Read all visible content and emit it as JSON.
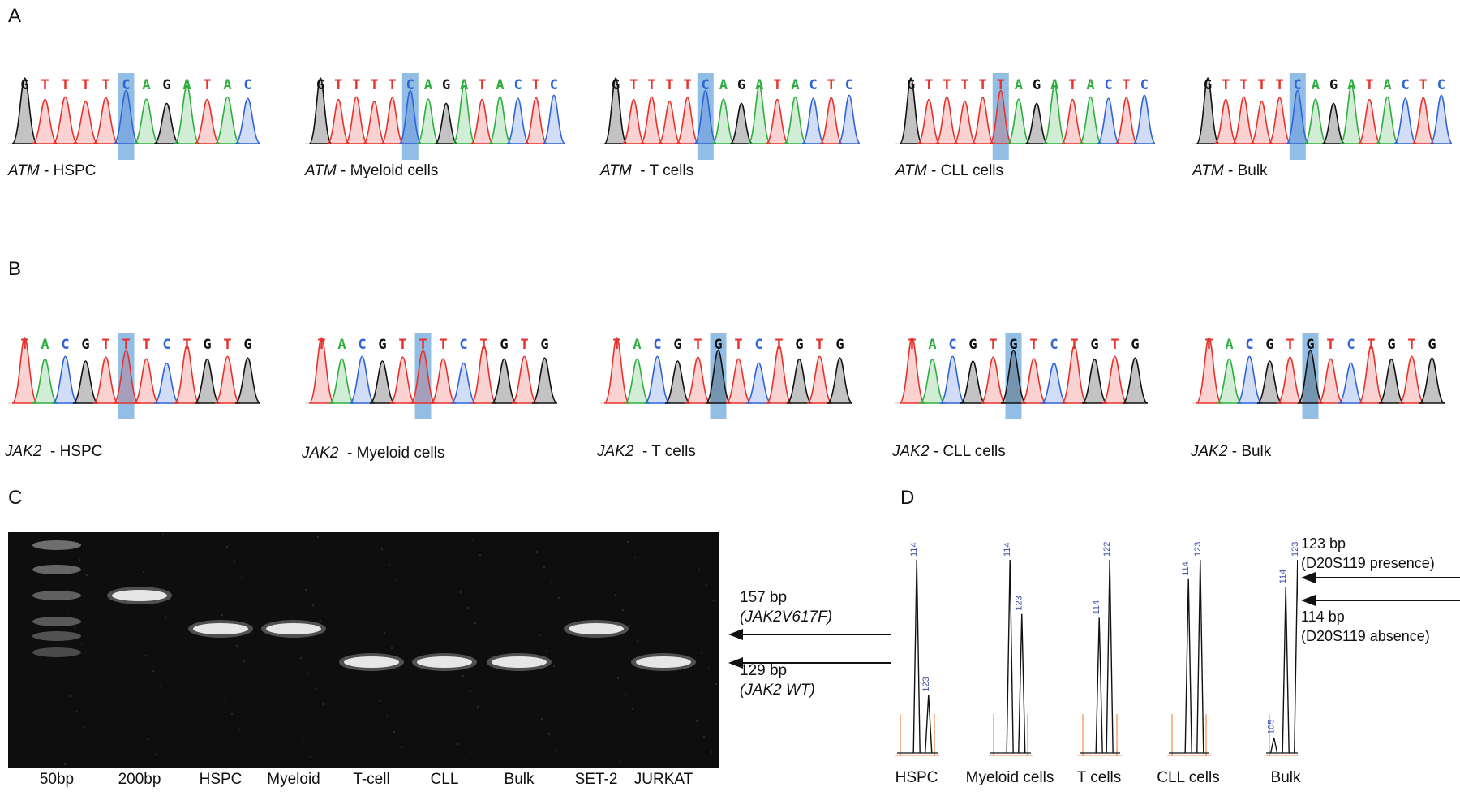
{
  "panels": {
    "a": "A",
    "b": "B",
    "c": "C",
    "d": "D"
  },
  "atm": [
    {
      "gene": "ATM",
      "sep": " - ",
      "cell": "HSPC",
      "seq": [
        "G",
        "T",
        "T",
        "T",
        "T",
        "C",
        "A",
        "G",
        "A",
        "T",
        "A",
        "C"
      ]
    },
    {
      "gene": "ATM",
      "sep": " - ",
      "cell": "Myeloid cells",
      "seq": [
        "G",
        "T",
        "T",
        "T",
        "T",
        "C",
        "A",
        "G",
        "A",
        "T",
        "A",
        "C",
        "T",
        "C"
      ]
    },
    {
      "gene": "ATM",
      "sep": "  - ",
      "cell": "T cells",
      "seq": [
        "G",
        "T",
        "T",
        "T",
        "T",
        "C",
        "A",
        "G",
        "A",
        "T",
        "A",
        "C",
        "T",
        "C"
      ]
    },
    {
      "gene": "ATM",
      "sep": " - ",
      "cell": "CLL cells",
      "seq": [
        "G",
        "T",
        "T",
        "T",
        "T",
        "T",
        "A",
        "G",
        "A",
        "T",
        "A",
        "C",
        "T",
        "C"
      ]
    },
    {
      "gene": "ATM",
      "sep": " - ",
      "cell": "Bulk",
      "seq": [
        "G",
        "T",
        "T",
        "T",
        "T",
        "C",
        "A",
        "G",
        "A",
        "T",
        "A",
        "C",
        "T",
        "C"
      ]
    }
  ],
  "jak2": [
    {
      "gene": "JAK2",
      "sep": "  - ",
      "cell": "HSPC",
      "seq": [
        "T",
        "A",
        "C",
        "G",
        "T",
        "T",
        "T",
        "C",
        "T",
        "G",
        "T",
        "G"
      ]
    },
    {
      "gene": "JAK2",
      "sep": "  - ",
      "cell": "Myeloid cells",
      "seq": [
        "T",
        "A",
        "C",
        "G",
        "T",
        "T",
        "T",
        "C",
        "T",
        "G",
        "T",
        "G"
      ]
    },
    {
      "gene": "JAK2",
      "sep": "  - ",
      "cell": "T cells",
      "seq": [
        "T",
        "A",
        "C",
        "G",
        "T",
        "G",
        "T",
        "C",
        "T",
        "G",
        "T",
        "G"
      ]
    },
    {
      "gene": "JAK2",
      "sep": " - ",
      "cell": "CLL cells",
      "seq": [
        "T",
        "A",
        "C",
        "G",
        "T",
        "G",
        "T",
        "C",
        "T",
        "G",
        "T",
        "G"
      ]
    },
    {
      "gene": "JAK2",
      "sep": " - ",
      "cell": "Bulk",
      "seq": [
        "T",
        "A",
        "C",
        "G",
        "T",
        "G",
        "T",
        "C",
        "T",
        "G",
        "T",
        "G"
      ]
    }
  ],
  "base_colors": {
    "A": "#2fae3f",
    "C": "#2f64d6",
    "G": "#111111",
    "T": "#e6322c"
  },
  "highlight_color": "#7fb3e0",
  "gel": {
    "lanes": [
      "50bp",
      "200bp",
      "HSPC",
      "Myeloid",
      "T-cell",
      "CLL",
      "Bulk",
      "SET-2",
      "JURKAT"
    ],
    "bands": {
      "50bp": [
        "ladder"
      ],
      "200bp": [
        "200bp"
      ],
      "HSPC": [
        "157"
      ],
      "Myeloid": [
        "157"
      ],
      "T-cell": [
        "129"
      ],
      "CLL": [
        "129"
      ],
      "Bulk": [
        "129"
      ],
      "SET-2": [
        "157"
      ],
      "JURKAT": [
        "129"
      ]
    },
    "upper_label": "157 bp",
    "upper_sub": "(JAK2V617F)",
    "lower_label": "129 bp",
    "lower_sub": "(JAK2 WT)"
  },
  "fragments": {
    "samples": [
      {
        "name": "HSPC",
        "peaks": [
          {
            "size": 114,
            "height": 1.0
          },
          {
            "size": 123,
            "height": 0.3
          }
        ]
      },
      {
        "name": "Myeloid cells",
        "peaks": [
          {
            "size": 114,
            "height": 1.0
          },
          {
            "size": 123,
            "height": 0.72
          }
        ]
      },
      {
        "name": "T cells",
        "peaks": [
          {
            "size": 114,
            "height": 0.7
          },
          {
            "size": 122,
            "height": 1.0
          }
        ]
      },
      {
        "name": "CLL cells",
        "peaks": [
          {
            "size": 114,
            "height": 0.9
          },
          {
            "size": 123,
            "height": 1.0
          }
        ]
      },
      {
        "name": "Bulk",
        "peaks": [
          {
            "size": 105,
            "height": 0.08
          },
          {
            "size": 114,
            "height": 0.86
          },
          {
            "size": 123,
            "height": 1.0
          }
        ]
      }
    ],
    "label_123": "123 bp",
    "label_123_sub": "(D20S119 presence)",
    "label_114": "114 bp",
    "label_114_sub": "(D20S119 absence)"
  }
}
